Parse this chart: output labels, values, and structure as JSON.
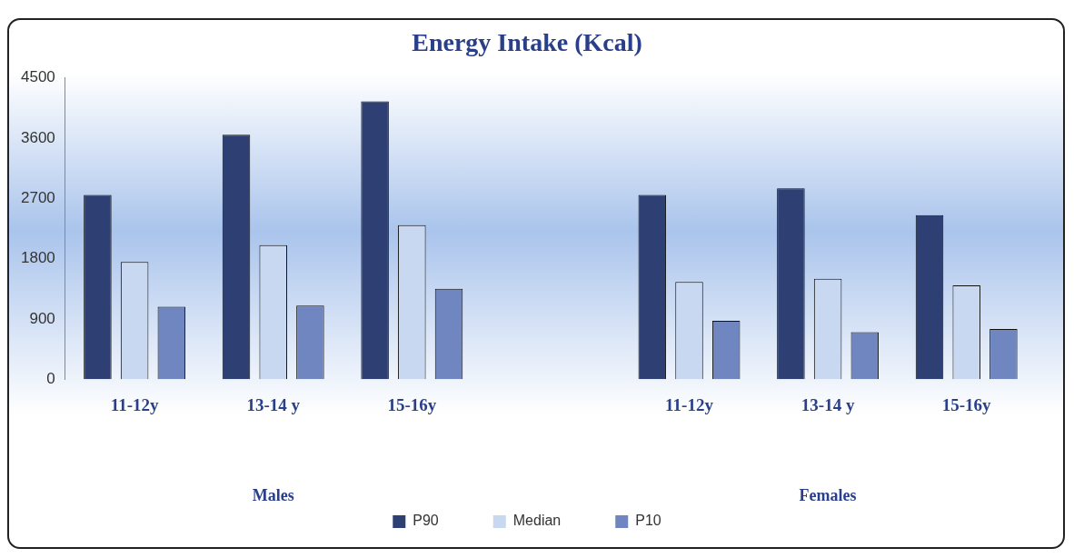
{
  "chart_data": {
    "type": "bar",
    "title": "Energy Intake (Kcal)",
    "categories": [
      "11-12y",
      "13-14 y",
      "15-16y",
      null,
      "11-12y",
      "13-14 y",
      "15-16y"
    ],
    "series": [
      {
        "name": "P90",
        "color": "#2e3f73",
        "values": [
          2750,
          3650,
          4150,
          null,
          2750,
          2850,
          2450
        ]
      },
      {
        "name": "Median",
        "color": "#c8d8f0",
        "values": [
          1750,
          2000,
          2300,
          null,
          1450,
          1500,
          1400
        ]
      },
      {
        "name": "P10",
        "color": "#6f86c0",
        "values": [
          1080,
          1100,
          1350,
          null,
          870,
          700,
          750
        ]
      }
    ],
    "ylim": [
      0,
      4500
    ],
    "yticks": [
      0,
      900,
      1800,
      2700,
      3600,
      4500
    ],
    "grid": false,
    "legend": "bottom",
    "annotations": [
      "Males",
      "Females"
    ]
  }
}
